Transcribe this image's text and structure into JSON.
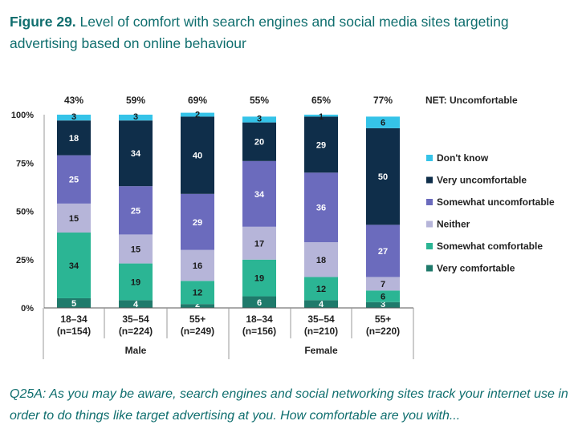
{
  "title": {
    "prefix": "Figure 29.",
    "text": "Level of comfort with search engines and social media sites targeting advertising based on online behaviour"
  },
  "footnote": "Q25A: As you may be aware, search engines and social networking sites track your internet use in order to do things like target advertising at you. How comfortable are you with...",
  "chart_data": {
    "type": "bar",
    "stacked": true,
    "title": "Level of comfort with search engines and social media sites targeting advertising based on online behaviour",
    "categories": [
      "18–34 (n=154)",
      "35–54 (n=224)",
      "55+ (n=249)",
      "18–34 (n=156)",
      "35–54 (n=210)",
      "55+ (n=220)"
    ],
    "category_lines": [
      [
        "18–34",
        "(n=154)"
      ],
      [
        "35–54",
        "(n=224)"
      ],
      [
        "55+",
        "(n=249)"
      ],
      [
        "18–34",
        "(n=156)"
      ],
      [
        "35–54",
        "(n=210)"
      ],
      [
        "55+",
        "(n=220)"
      ]
    ],
    "groups": [
      {
        "label": "Male",
        "start": 0,
        "end": 2
      },
      {
        "label": "Female",
        "start": 3,
        "end": 5
      }
    ],
    "net_label": "NET: Uncomfortable",
    "net_values": [
      "43%",
      "59%",
      "69%",
      "55%",
      "65%",
      "77%"
    ],
    "yticks": [
      "0%",
      "25%",
      "50%",
      "75%",
      "100%"
    ],
    "ylim": [
      0,
      100
    ],
    "series": [
      {
        "name": "Very comfortable",
        "color": "#1f7a6b",
        "label_color": "#ffffff",
        "values": [
          5,
          4,
          2,
          6,
          4,
          3
        ]
      },
      {
        "name": "Somewhat comfortable",
        "color": "#2bb594",
        "label_color": "#1a1a1a",
        "values": [
          34,
          19,
          12,
          19,
          12,
          6
        ]
      },
      {
        "name": "Neither",
        "color": "#b6b5d9",
        "label_color": "#1a1a1a",
        "values": [
          15,
          15,
          16,
          17,
          18,
          7
        ]
      },
      {
        "name": "Somewhat uncomfortable",
        "color": "#6b6bbd",
        "label_color": "#ffffff",
        "values": [
          25,
          25,
          29,
          34,
          36,
          27
        ]
      },
      {
        "name": "Very uncomfortable",
        "color": "#0f2e4a",
        "label_color": "#ffffff",
        "values": [
          18,
          34,
          40,
          20,
          29,
          50
        ]
      },
      {
        "name": "Don't know",
        "color": "#35c3e8",
        "label_color": "#1a1a1a",
        "values": [
          3,
          3,
          2,
          3,
          1,
          6
        ]
      }
    ],
    "legend_order": [
      "Don't know",
      "Very uncomfortable",
      "Somewhat uncomfortable",
      "Neither",
      "Somewhat comfortable",
      "Very comfortable"
    ]
  }
}
